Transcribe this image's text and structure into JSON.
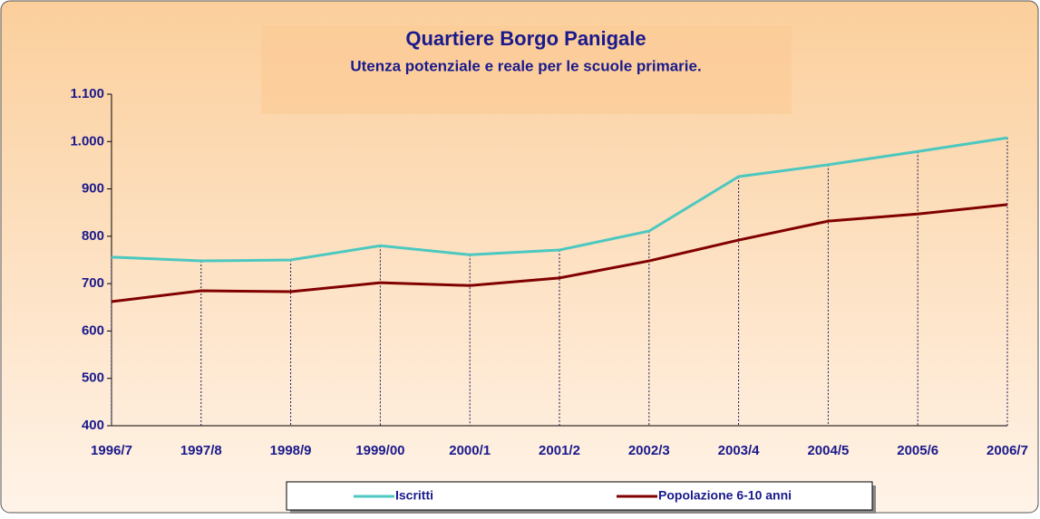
{
  "chart_data": {
    "type": "line",
    "title": "Quartiere Borgo Panigale",
    "subtitle": "Utenza potenziale e reale per le scuole primarie.",
    "categories": [
      "1996/7",
      "1997/8",
      "1998/9",
      "1999/00",
      "2000/1",
      "2001/2",
      "2002/3",
      "2003/4",
      "2004/5",
      "2005/6",
      "2006/7"
    ],
    "series": [
      {
        "name": "Iscritti",
        "color": "#4cc8c0",
        "values": [
          756,
          748,
          750,
          780,
          761,
          771,
          811,
          926,
          951,
          979,
          1008
        ]
      },
      {
        "name": "Popolazione 6-10 anni",
        "color": "#800000",
        "values": [
          662,
          685,
          683,
          702,
          696,
          712,
          748,
          792,
          832,
          847,
          867
        ]
      }
    ],
    "ylim": [
      400,
      1100
    ],
    "yticks": [
      400,
      500,
      600,
      700,
      800,
      900,
      {
        "value": 1000,
        "label": "1.000"
      },
      {
        "value": 1100,
        "label": "1.100"
      }
    ],
    "drop_lines": true,
    "legend": "bottom"
  }
}
